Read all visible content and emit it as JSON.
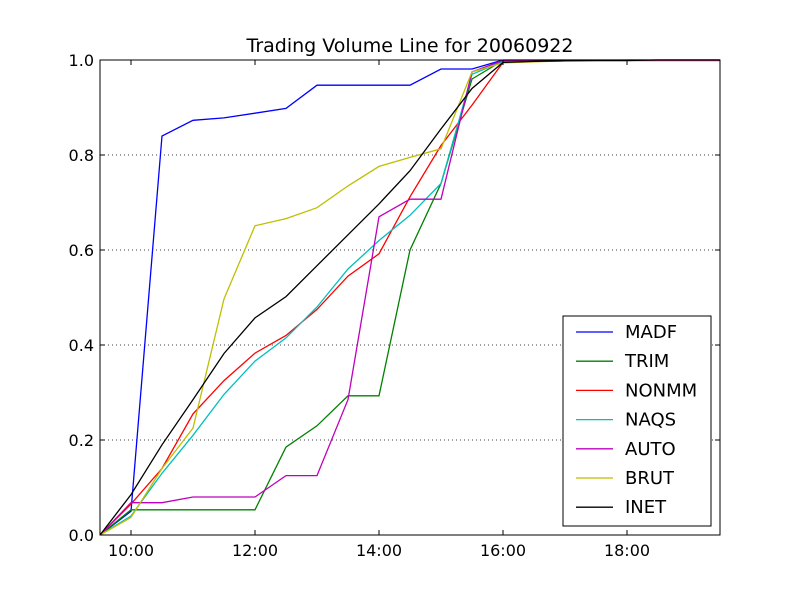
{
  "chart_data": {
    "type": "line",
    "title": "Trading Volume Line for 20060922",
    "xlabel": "",
    "ylabel": "",
    "x_unit": "time of day",
    "xlim": [
      "09:30",
      "19:30"
    ],
    "ylim": [
      0,
      1.0
    ],
    "x_ticks": [
      "10:00",
      "12:00",
      "14:00",
      "16:00",
      "18:00"
    ],
    "y_ticks": [
      "0.0",
      "0.2",
      "0.4",
      "0.6",
      "0.8",
      "1.0"
    ],
    "grid": "horizontal dotted",
    "legend_position": "lower-right",
    "series": [
      {
        "name": "MADF",
        "color": "#0000ff",
        "points": [
          [
            "09:30",
            0.0
          ],
          [
            "10:00",
            0.05
          ],
          [
            "10:30",
            0.84
          ],
          [
            "11:00",
            0.873
          ],
          [
            "11:30",
            0.878
          ],
          [
            "12:00",
            0.888
          ],
          [
            "12:30",
            0.898
          ],
          [
            "13:00",
            0.947
          ],
          [
            "13:30",
            0.947
          ],
          [
            "14:00",
            0.947
          ],
          [
            "14:30",
            0.947
          ],
          [
            "15:00",
            0.981
          ],
          [
            "15:30",
            0.981
          ],
          [
            "16:00",
            1.0
          ],
          [
            "16:30",
            1.0
          ],
          [
            "17:00",
            1.0
          ],
          [
            "17:30",
            1.0
          ],
          [
            "18:00",
            1.0
          ],
          [
            "18:30",
            1.0
          ],
          [
            "19:00",
            1.0
          ],
          [
            "19:30",
            1.0
          ]
        ]
      },
      {
        "name": "TRIM",
        "color": "#008000",
        "points": [
          [
            "09:30",
            0.0
          ],
          [
            "10:00",
            0.053
          ],
          [
            "10:30",
            0.053
          ],
          [
            "11:00",
            0.053
          ],
          [
            "11:30",
            0.053
          ],
          [
            "12:00",
            0.053
          ],
          [
            "12:30",
            0.185
          ],
          [
            "13:00",
            0.23
          ],
          [
            "13:30",
            0.293
          ],
          [
            "14:00",
            0.293
          ],
          [
            "14:30",
            0.6
          ],
          [
            "15:00",
            0.74
          ],
          [
            "15:30",
            0.96
          ],
          [
            "16:00",
            0.999
          ],
          [
            "16:30",
            0.999
          ],
          [
            "17:00",
            0.999
          ],
          [
            "17:30",
            0.999
          ],
          [
            "18:00",
            0.999
          ],
          [
            "18:30",
            0.999
          ],
          [
            "19:00",
            0.999
          ],
          [
            "19:30",
            0.999
          ]
        ]
      },
      {
        "name": "NONMM",
        "color": "#ff0000",
        "points": [
          [
            "09:30",
            0.0
          ],
          [
            "10:00",
            0.065
          ],
          [
            "10:30",
            0.14
          ],
          [
            "11:00",
            0.255
          ],
          [
            "11:30",
            0.325
          ],
          [
            "12:00",
            0.383
          ],
          [
            "12:30",
            0.42
          ],
          [
            "13:00",
            0.475
          ],
          [
            "13:30",
            0.545
          ],
          [
            "14:00",
            0.592
          ],
          [
            "14:30",
            0.712
          ],
          [
            "15:00",
            0.82
          ],
          [
            "15:30",
            0.905
          ],
          [
            "16:00",
            0.995
          ],
          [
            "16:30",
            0.997
          ],
          [
            "17:00",
            0.998
          ],
          [
            "17:30",
            0.999
          ],
          [
            "18:00",
            0.999
          ],
          [
            "18:30",
            1.0
          ],
          [
            "19:00",
            1.0
          ],
          [
            "19:30",
            1.0
          ]
        ]
      },
      {
        "name": "NAQS",
        "color": "#00bfbf",
        "points": [
          [
            "09:30",
            0.0
          ],
          [
            "10:00",
            0.04
          ],
          [
            "10:30",
            0.13
          ],
          [
            "11:00",
            0.21
          ],
          [
            "11:30",
            0.296
          ],
          [
            "12:00",
            0.366
          ],
          [
            "12:30",
            0.415
          ],
          [
            "13:00",
            0.48
          ],
          [
            "13:30",
            0.56
          ],
          [
            "14:00",
            0.62
          ],
          [
            "14:30",
            0.673
          ],
          [
            "15:00",
            0.74
          ],
          [
            "15:30",
            0.97
          ],
          [
            "16:00",
            0.997
          ],
          [
            "16:30",
            0.998
          ],
          [
            "17:00",
            0.999
          ],
          [
            "17:30",
            0.999
          ],
          [
            "18:00",
            1.0
          ],
          [
            "18:30",
            1.0
          ],
          [
            "19:00",
            1.0
          ],
          [
            "19:30",
            1.0
          ]
        ]
      },
      {
        "name": "AUTO",
        "color": "#bf00bf",
        "points": [
          [
            "09:30",
            0.0
          ],
          [
            "10:00",
            0.068
          ],
          [
            "10:30",
            0.068
          ],
          [
            "11:00",
            0.08
          ],
          [
            "11:30",
            0.08
          ],
          [
            "12:00",
            0.08
          ],
          [
            "12:30",
            0.125
          ],
          [
            "13:00",
            0.125
          ],
          [
            "13:30",
            0.285
          ],
          [
            "14:00",
            0.67
          ],
          [
            "14:30",
            0.707
          ],
          [
            "15:00",
            0.707
          ],
          [
            "15:30",
            0.975
          ],
          [
            "16:00",
            0.999
          ],
          [
            "16:30",
            0.999
          ],
          [
            "17:00",
            0.999
          ],
          [
            "17:30",
            0.999
          ],
          [
            "18:00",
            0.999
          ],
          [
            "18:30",
            0.999
          ],
          [
            "19:00",
            0.999
          ],
          [
            "19:30",
            0.999
          ]
        ]
      },
      {
        "name": "BRUT",
        "color": "#bfbf00",
        "points": [
          [
            "09:30",
            0.0
          ],
          [
            "10:00",
            0.037
          ],
          [
            "10:30",
            0.14
          ],
          [
            "11:00",
            0.225
          ],
          [
            "11:30",
            0.497
          ],
          [
            "12:00",
            0.651
          ],
          [
            "12:30",
            0.666
          ],
          [
            "13:00",
            0.689
          ],
          [
            "13:30",
            0.735
          ],
          [
            "14:00",
            0.776
          ],
          [
            "14:30",
            0.795
          ],
          [
            "15:00",
            0.813
          ],
          [
            "15:30",
            0.975
          ],
          [
            "16:00",
            0.994
          ],
          [
            "16:30",
            0.996
          ],
          [
            "17:00",
            0.998
          ],
          [
            "17:30",
            0.999
          ],
          [
            "18:00",
            1.0
          ],
          [
            "18:30",
            1.0
          ],
          [
            "19:00",
            1.0
          ],
          [
            "19:30",
            1.0
          ]
        ]
      },
      {
        "name": "INET",
        "color": "#000000",
        "points": [
          [
            "09:30",
            0.0
          ],
          [
            "10:00",
            0.085
          ],
          [
            "10:30",
            0.19
          ],
          [
            "11:00",
            0.285
          ],
          [
            "11:30",
            0.382
          ],
          [
            "12:00",
            0.457
          ],
          [
            "12:30",
            0.502
          ],
          [
            "13:00",
            0.567
          ],
          [
            "13:30",
            0.632
          ],
          [
            "14:00",
            0.697
          ],
          [
            "14:30",
            0.767
          ],
          [
            "15:00",
            0.855
          ],
          [
            "15:30",
            0.94
          ],
          [
            "16:00",
            0.995
          ],
          [
            "16:30",
            0.997
          ],
          [
            "17:00",
            0.998
          ],
          [
            "17:30",
            0.999
          ],
          [
            "18:00",
            0.999
          ],
          [
            "18:30",
            1.0
          ],
          [
            "19:00",
            1.0
          ],
          [
            "19:30",
            1.0
          ]
        ]
      }
    ]
  }
}
